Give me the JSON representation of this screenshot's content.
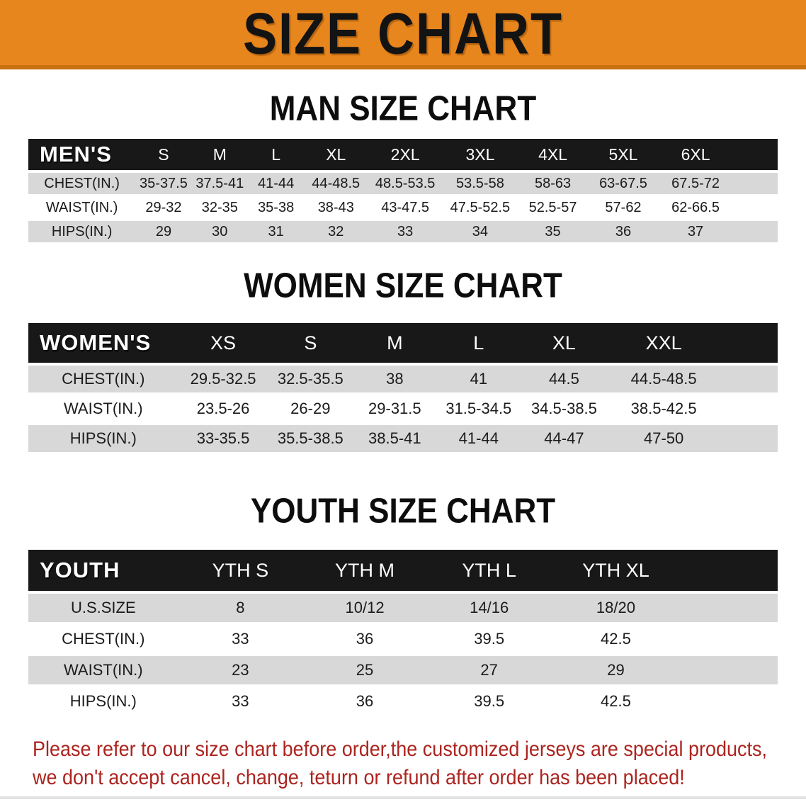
{
  "banner": {
    "title": "SIZE CHART"
  },
  "colors": {
    "banner_orange": "#E8861E",
    "banner_edge": "#C9710F",
    "header_black": "#181818",
    "row_gray": "#D8D8D8",
    "disclaimer_red": "#AC241F"
  },
  "sections": [
    {
      "heading": "MAN SIZE CHART",
      "table": {
        "group_label": "MEN'S",
        "columns": [
          "S",
          "M",
          "L",
          "XL",
          "2XL",
          "3XL",
          "4XL",
          "5XL",
          "6XL"
        ],
        "rows": [
          {
            "label": "CHEST(IN.)",
            "values": [
              "35-37.5",
              "37.5-41",
              "41-44",
              "44-48.5",
              "48.5-53.5",
              "53.5-58",
              "58-63",
              "63-67.5",
              "67.5-72"
            ]
          },
          {
            "label": "WAIST(IN.)",
            "values": [
              "29-32",
              "32-35",
              "35-38",
              "38-43",
              "43-47.5",
              "47.5-52.5",
              "52.5-57",
              "57-62",
              "62-66.5"
            ]
          },
          {
            "label": "HIPS(IN.)",
            "values": [
              "29",
              "30",
              "31",
              "32",
              "33",
              "34",
              "35",
              "36",
              "37"
            ]
          }
        ]
      }
    },
    {
      "heading": "WOMEN SIZE CHART",
      "table": {
        "group_label": "WOMEN'S",
        "columns": [
          "XS",
          "S",
          "M",
          "L",
          "XL",
          "XXL"
        ],
        "rows": [
          {
            "label": "CHEST(IN.)",
            "values": [
              "29.5-32.5",
              "32.5-35.5",
              "38",
              "41",
              "44.5",
              "44.5-48.5"
            ]
          },
          {
            "label": "WAIST(IN.)",
            "values": [
              "23.5-26",
              "26-29",
              "29-31.5",
              "31.5-34.5",
              "34.5-38.5",
              "38.5-42.5"
            ]
          },
          {
            "label": "HIPS(IN.)",
            "values": [
              "33-35.5",
              "35.5-38.5",
              "38.5-41",
              "41-44",
              "44-47",
              "47-50"
            ]
          }
        ]
      }
    },
    {
      "heading": "YOUTH SIZE CHART",
      "table": {
        "group_label": "YOUTH",
        "columns": [
          "YTH S",
          "YTH M",
          "YTH L",
          "YTH XL"
        ],
        "rows": [
          {
            "label": "U.S.SIZE",
            "values": [
              "8",
              "10/12",
              "14/16",
              "18/20"
            ]
          },
          {
            "label": "CHEST(IN.)",
            "values": [
              "33",
              "36",
              "39.5",
              "42.5"
            ]
          },
          {
            "label": "WAIST(IN.)",
            "values": [
              "23",
              "25",
              "27",
              "29"
            ]
          },
          {
            "label": "HIPS(IN.)",
            "values": [
              "33",
              "36",
              "39.5",
              "42.5"
            ]
          }
        ]
      }
    }
  ],
  "disclaimer": {
    "lines": [
      "Please refer to our size chart before order,the customized jerseys are special products,",
      "we don't accept cancel, change, teturn or refund after order has been placed!"
    ]
  }
}
